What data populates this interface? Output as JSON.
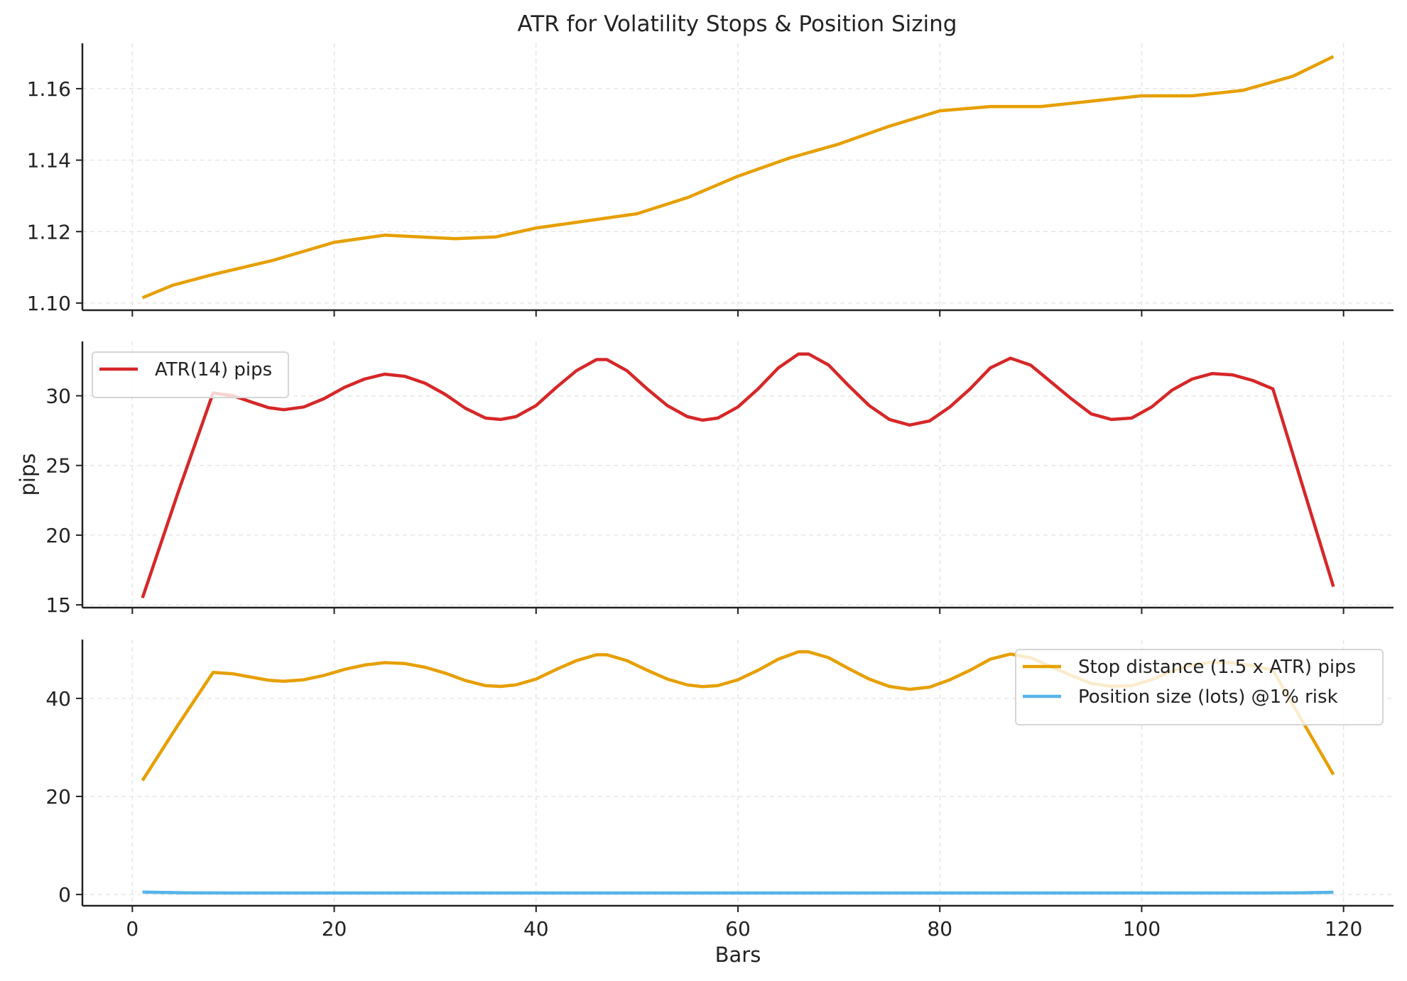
{
  "chart_data": {
    "title": "ATR for Volatility Stops & Position Sizing",
    "xlabel": "Bars",
    "xlim": [
      -4.95,
      124.95
    ],
    "xticks": [
      0,
      20,
      40,
      60,
      80,
      100,
      120
    ],
    "grid": true,
    "panels": [
      {
        "type": "line",
        "ylabel": "",
        "ylim": [
          1.098,
          1.1727
        ],
        "yticks": [
          1.1,
          1.12,
          1.14,
          1.16
        ],
        "ytick_labels": [
          "1.10",
          "1.12",
          "1.14",
          "1.16"
        ],
        "legend": null,
        "series": [
          {
            "color": "#E69F00",
            "x": [
              1,
              4,
              8,
              14,
              20,
              25,
              32,
              36,
              40,
              45,
              50,
              55,
              60,
              65,
              70,
              75,
              80,
              85,
              90,
              95,
              100,
              105,
              110,
              115,
              119
            ],
            "y": [
              1.1015,
              1.105,
              1.108,
              1.112,
              1.117,
              1.119,
              1.118,
              1.1185,
              1.121,
              1.123,
              1.125,
              1.1295,
              1.1355,
              1.1405,
              1.1445,
              1.1495,
              1.1538,
              1.155,
              1.155,
              1.1565,
              1.158,
              1.158,
              1.1595,
              1.1635,
              1.169
            ]
          }
        ]
      },
      {
        "type": "line",
        "ylabel": "pips",
        "ylim": [
          14.8,
          33.9
        ],
        "yticks": [
          15,
          20,
          25,
          30
        ],
        "ytick_labels": [
          "15",
          "20",
          "25",
          "30"
        ],
        "legend": "top-left",
        "series": [
          {
            "name": "ATR(14) pips",
            "color": "#D62728",
            "x": [
              1,
              4.5,
              8,
              10,
              12,
              13.5,
              15,
              17,
              19,
              21,
              23,
              25,
              27,
              29,
              31,
              33,
              35,
              36.5,
              38,
              40,
              42,
              44,
              46,
              47,
              49,
              51,
              53,
              55,
              56.5,
              58,
              60,
              62,
              64,
              66,
              67,
              69,
              71,
              73,
              75,
              77,
              79,
              81,
              83,
              85,
              87,
              89,
              91,
              93,
              95,
              97,
              99,
              101,
              103,
              105,
              107,
              109,
              111,
              113,
              119
            ],
            "y": [
              15.5,
              23,
              30.2,
              30.0,
              29.5,
              29.15,
              29.0,
              29.2,
              29.8,
              30.6,
              31.2,
              31.55,
              31.4,
              30.9,
              30.1,
              29.1,
              28.4,
              28.3,
              28.5,
              29.3,
              30.6,
              31.8,
              32.6,
              32.6,
              31.8,
              30.5,
              29.3,
              28.5,
              28.25,
              28.4,
              29.2,
              30.5,
              32.0,
              33.0,
              33.0,
              32.2,
              30.7,
              29.3,
              28.3,
              27.9,
              28.2,
              29.2,
              30.5,
              32.0,
              32.7,
              32.2,
              31.0,
              29.8,
              28.7,
              28.3,
              28.4,
              29.2,
              30.4,
              31.2,
              31.6,
              31.5,
              31.1,
              30.5,
              16.3
            ]
          }
        ]
      },
      {
        "type": "line",
        "ylabel": "",
        "ylim": [
          -2.3,
          52
        ],
        "yticks": [
          0,
          20,
          40
        ],
        "ytick_labels": [
          "0",
          "20",
          "40"
        ],
        "legend": "top-right",
        "series": [
          {
            "name": "Stop distance (1.5 x ATR) pips",
            "color": "#E69F00",
            "x": [
              1,
              4.5,
              8,
              10,
              12,
              13.5,
              15,
              17,
              19,
              21,
              23,
              25,
              27,
              29,
              31,
              33,
              35,
              36.5,
              38,
              40,
              42,
              44,
              46,
              47,
              49,
              51,
              53,
              55,
              56.5,
              58,
              60,
              62,
              64,
              66,
              67,
              69,
              71,
              73,
              75,
              77,
              79,
              81,
              83,
              85,
              87,
              89,
              91,
              93,
              95,
              97,
              99,
              101,
              103,
              105,
              107,
              109,
              111,
              113,
              119
            ],
            "y": [
              23.25,
              34.5,
              45.3,
              45.0,
              44.25,
              43.7,
              43.5,
              43.8,
              44.7,
              45.9,
              46.8,
              47.3,
              47.1,
              46.35,
              45.15,
              43.65,
              42.6,
              42.45,
              42.75,
              43.95,
              45.9,
              47.7,
              48.9,
              48.9,
              47.7,
              45.75,
              43.95,
              42.75,
              42.4,
              42.6,
              43.8,
              45.75,
              48.0,
              49.5,
              49.5,
              48.3,
              46.05,
              43.95,
              42.45,
              41.85,
              42.3,
              43.8,
              45.75,
              48.0,
              49.05,
              48.3,
              46.5,
              44.7,
              43.05,
              42.45,
              42.6,
              43.8,
              45.6,
              46.8,
              47.4,
              47.25,
              46.65,
              45.75,
              24.45
            ]
          },
          {
            "name": "Position size (lots) @1% risk",
            "color": "#56B4E9",
            "x": [
              1,
              5,
              10,
              30,
              60,
              90,
              112,
              116,
              119
            ],
            "y": [
              0.5,
              0.35,
              0.3,
              0.3,
              0.3,
              0.3,
              0.3,
              0.35,
              0.45
            ]
          }
        ]
      }
    ]
  }
}
